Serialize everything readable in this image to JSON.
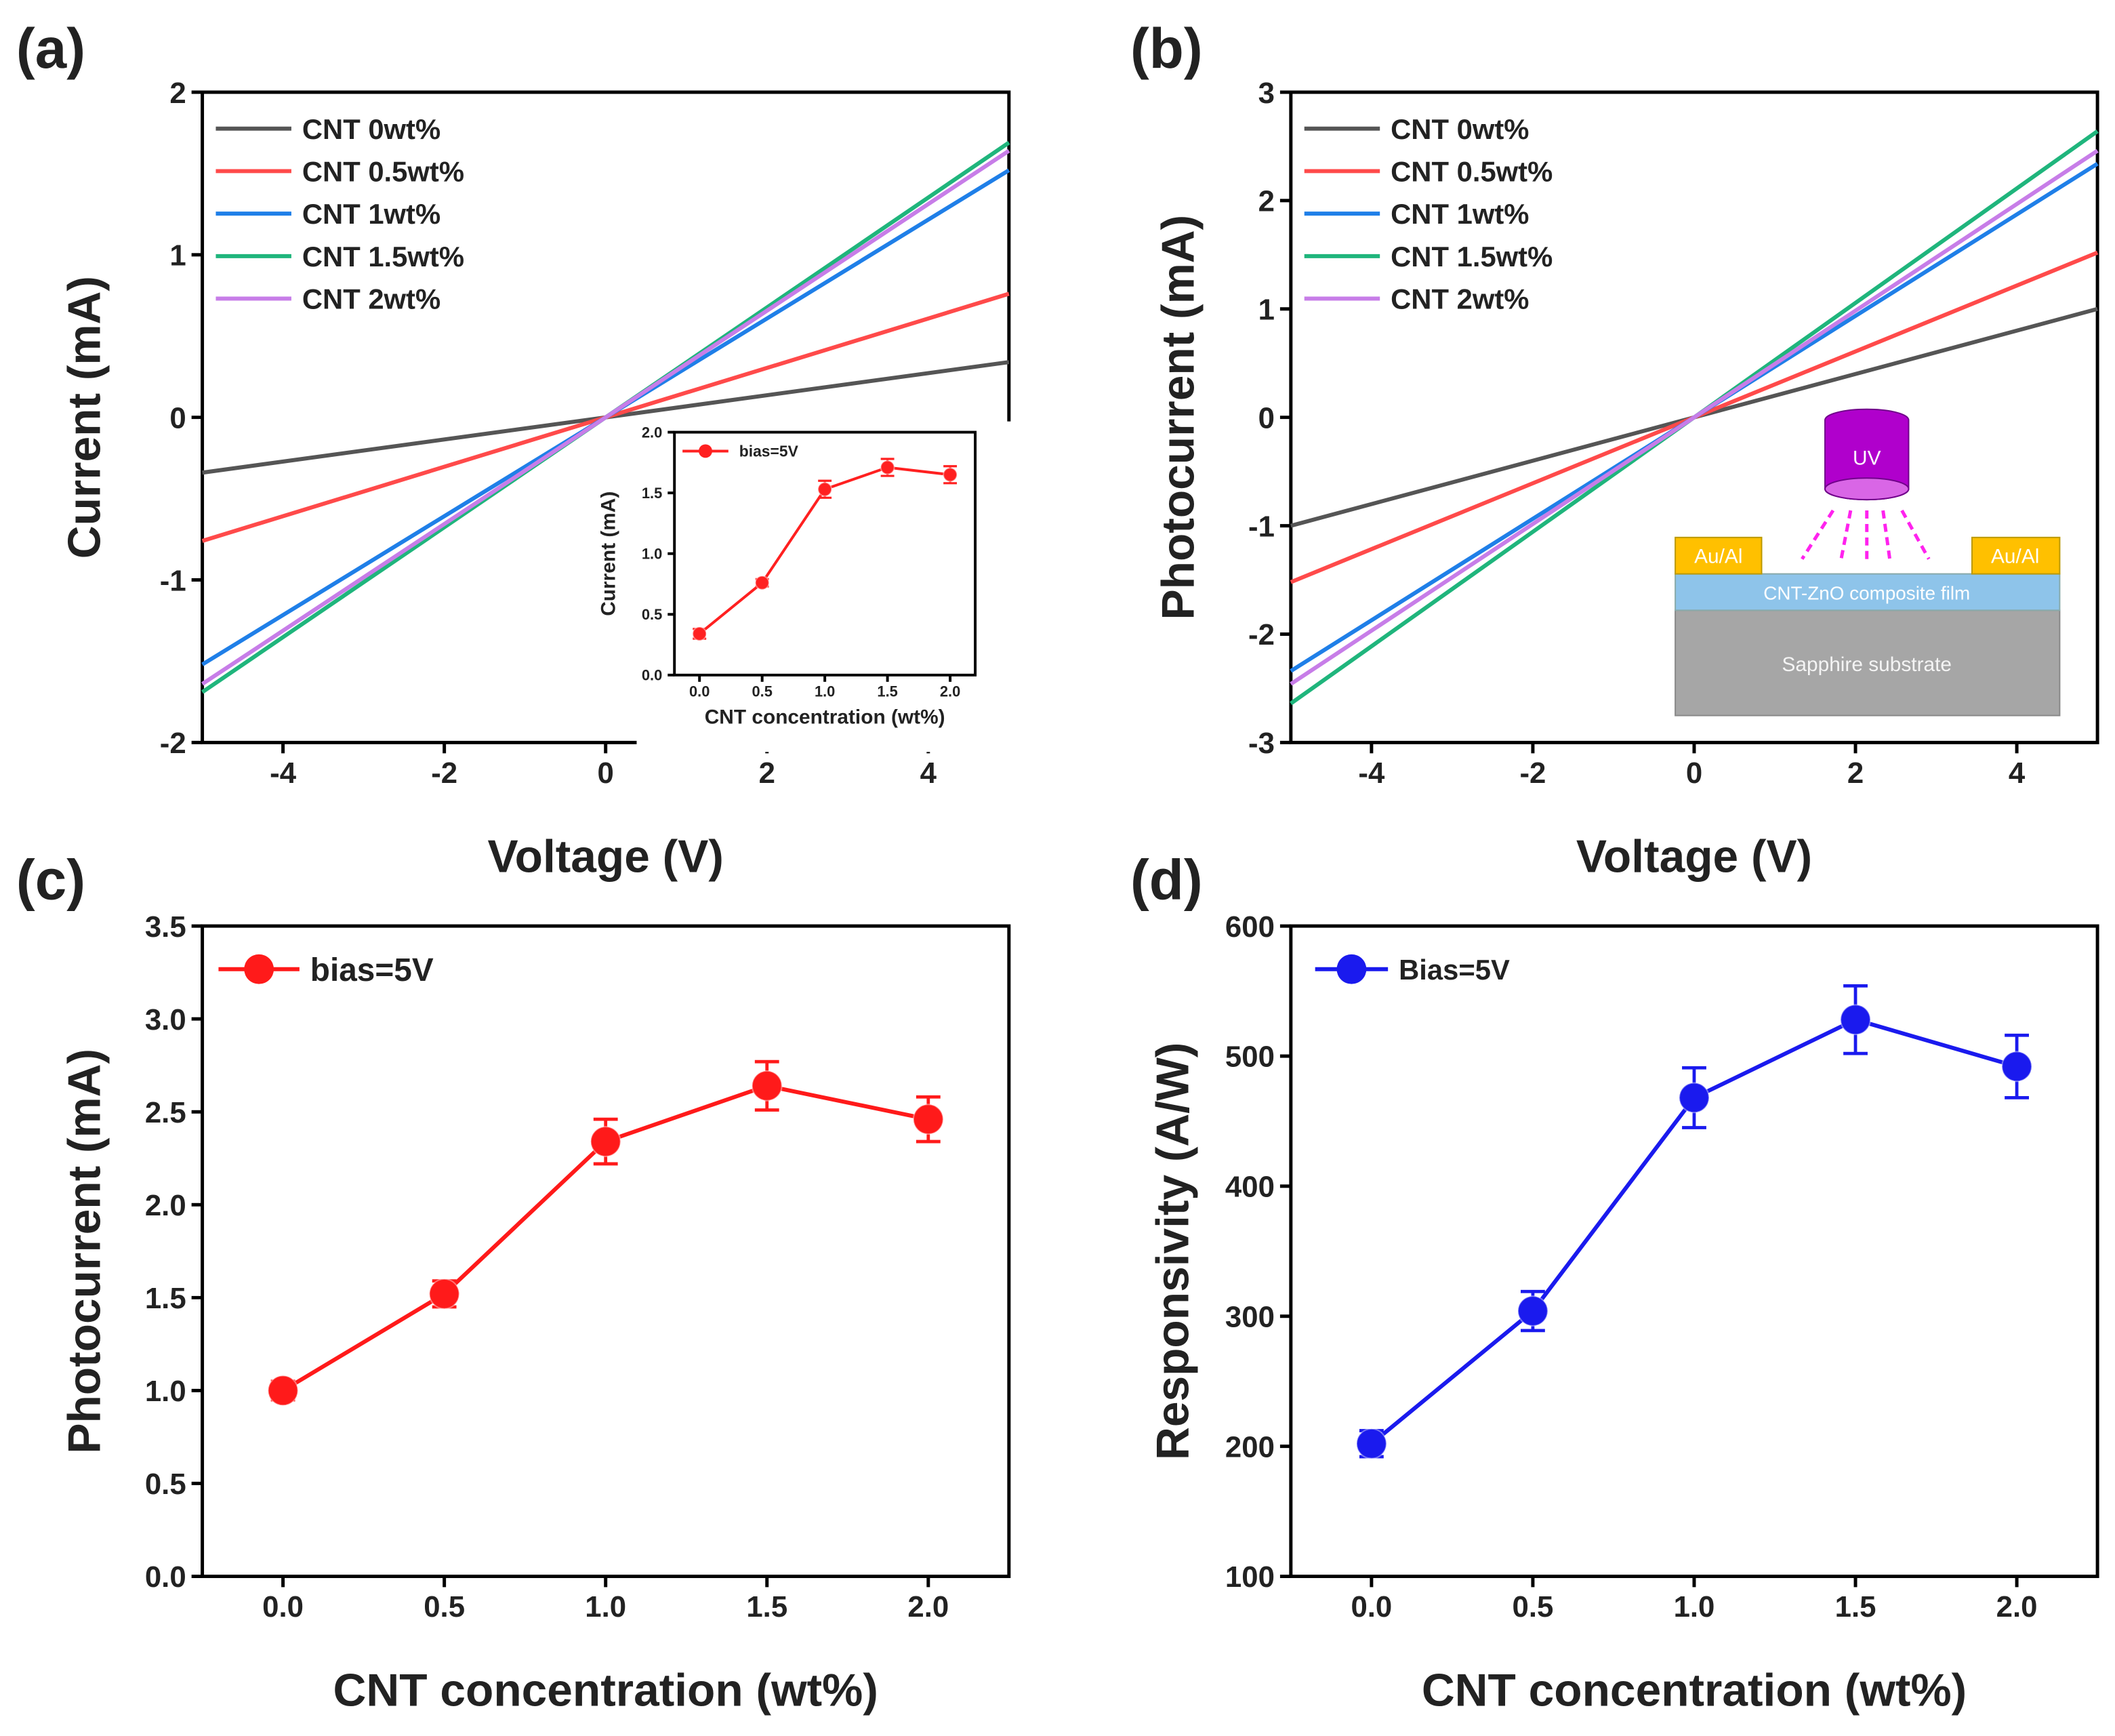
{
  "chart_data": [
    {
      "panel": "(a)",
      "type": "line",
      "xlabel": "Voltage (V)",
      "ylabel": "Current (mA)",
      "xlim": [
        -5,
        5
      ],
      "ylim": [
        -2,
        2
      ],
      "xticks": [
        -4,
        -2,
        0,
        2,
        4
      ],
      "yticks": [
        -2,
        -1,
        0,
        1,
        2
      ],
      "legend_placement": "top-left",
      "series": [
        {
          "name": "CNT 0wt%",
          "color": "#555555",
          "x": [
            -5,
            5
          ],
          "y": [
            -0.34,
            0.34
          ]
        },
        {
          "name": "CNT 0.5wt%",
          "color": "#ff4a4a",
          "x": [
            -5,
            5
          ],
          "y": [
            -0.76,
            0.76
          ]
        },
        {
          "name": "CNT 1wt%",
          "color": "#1f7fe8",
          "x": [
            -5,
            5
          ],
          "y": [
            -1.52,
            1.52
          ]
        },
        {
          "name": "CNT 1.5wt%",
          "color": "#1fb57c",
          "x": [
            -5,
            5
          ],
          "y": [
            -1.69,
            1.69
          ]
        },
        {
          "name": "CNT 2wt%",
          "color": "#c77de8",
          "x": [
            -5,
            5
          ],
          "y": [
            -1.64,
            1.64
          ]
        }
      ],
      "inset": {
        "type": "line",
        "xlabel": "CNT concentration (wt%)",
        "ylabel": "Current (mA)",
        "xlim": [
          -0.2,
          2.2
        ],
        "ylim": [
          0,
          2
        ],
        "xticks": [
          "0.0",
          "0.5",
          "1.0",
          "1.5",
          "2.0"
        ],
        "yticks": [
          "0.0",
          "0.5",
          "1.0",
          "1.5",
          "2.0"
        ],
        "series": [
          {
            "name": "bias=5V",
            "color": "#ff2020",
            "x": [
              0,
              0.5,
              1.0,
              1.5,
              2.0
            ],
            "y": [
              0.34,
              0.76,
              1.53,
              1.71,
              1.65
            ],
            "err": [
              0.04,
              0.03,
              0.07,
              0.07,
              0.07
            ]
          }
        ]
      }
    },
    {
      "panel": "(b)",
      "type": "line",
      "xlabel": "Voltage (V)",
      "ylabel": "Photocurrent (mA)",
      "xlim": [
        -5,
        5
      ],
      "ylim": [
        -3,
        3
      ],
      "xticks": [
        -4,
        -2,
        0,
        2,
        4
      ],
      "yticks": [
        -3,
        -2,
        -1,
        0,
        1,
        2,
        3
      ],
      "legend_placement": "top-left",
      "series": [
        {
          "name": "CNT 0wt%",
          "color": "#555555",
          "x": [
            -5,
            5
          ],
          "y": [
            -1.0,
            1.0
          ]
        },
        {
          "name": "CNT 0.5wt%",
          "color": "#ff4a4a",
          "x": [
            -5,
            5
          ],
          "y": [
            -1.52,
            1.52
          ]
        },
        {
          "name": "CNT 1wt%",
          "color": "#1f7fe8",
          "x": [
            -5,
            5
          ],
          "y": [
            -2.34,
            2.34
          ]
        },
        {
          "name": "CNT 1.5wt%",
          "color": "#1fb57c",
          "x": [
            -5,
            5
          ],
          "y": [
            -2.64,
            2.64
          ]
        },
        {
          "name": "CNT 2wt%",
          "color": "#c77de8",
          "x": [
            -5,
            5
          ],
          "y": [
            -2.46,
            2.46
          ]
        }
      ],
      "diagram": {
        "source": "UV",
        "electrode_left": "Au/Al",
        "electrode_right": "Au/Al",
        "film": "CNT-ZnO composite film",
        "substrate": "Sapphire substrate",
        "colors": {
          "source": "#b000cc",
          "source_face": "#d966e6",
          "rays": "#ff22ee",
          "electrode": "#ffc000",
          "film": "#8ec4ea",
          "substrate": "#a6a6a6"
        }
      }
    },
    {
      "panel": "(c)",
      "type": "line",
      "xlabel": "CNT concentration (wt%)",
      "ylabel": "Photocurrent (mA)",
      "xlim": [
        -0.25,
        2.25
      ],
      "ylim": [
        0,
        3.5
      ],
      "xticks": [
        "0.0",
        "0.5",
        "1.0",
        "1.5",
        "2.0"
      ],
      "yticks": [
        "0.0",
        "0.5",
        "1.0",
        "1.5",
        "2.0",
        "2.5",
        "3.0",
        "3.5"
      ],
      "legend_placement": "top-left",
      "series": [
        {
          "name": "bias=5V",
          "color": "#ff1a1a",
          "x": [
            0,
            0.5,
            1.0,
            1.5,
            2.0
          ],
          "y": [
            1.0,
            1.52,
            2.34,
            2.64,
            2.46
          ],
          "err": [
            0.05,
            0.07,
            0.12,
            0.13,
            0.12
          ]
        }
      ]
    },
    {
      "panel": "(d)",
      "type": "line",
      "xlabel": "CNT concentration (wt%)",
      "ylabel": "Responsivity (A/W)",
      "xlim": [
        -0.25,
        2.25
      ],
      "ylim": [
        100,
        600
      ],
      "xticks": [
        "0.0",
        "0.5",
        "1.0",
        "1.5",
        "2.0"
      ],
      "yticks": [
        "100",
        "200",
        "300",
        "400",
        "500",
        "600"
      ],
      "legend_placement": "top-left",
      "series": [
        {
          "name": "Bias=5V",
          "color": "#1a1aee",
          "x": [
            0,
            0.5,
            1.0,
            1.5,
            2.0
          ],
          "y": [
            202,
            304,
            468,
            528,
            492
          ],
          "err": [
            10,
            15,
            23,
            26,
            24
          ]
        }
      ]
    }
  ]
}
